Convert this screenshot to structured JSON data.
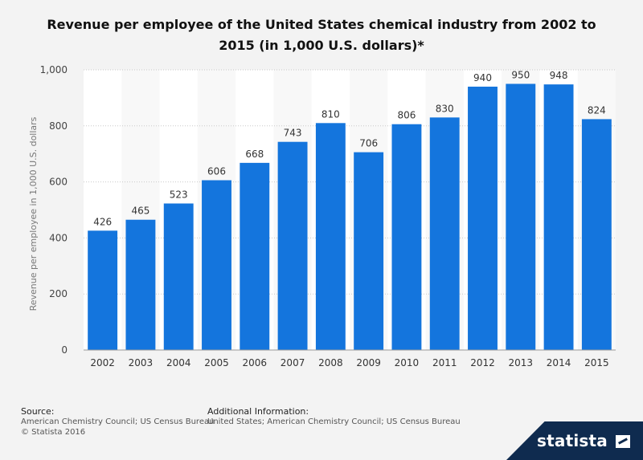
{
  "chart_data": {
    "type": "bar",
    "title": "Revenue per employee of the United States chemical industry from 2002 to 2015 (in 1,000 U.S. dollars)*",
    "xlabel": "",
    "ylabel": "Revenue per employee in 1,000 U.S. dollars",
    "ylim": [
      0,
      1000
    ],
    "yticks": [
      0,
      200,
      400,
      600,
      800,
      1000
    ],
    "ytick_labels": [
      "0",
      "200",
      "400",
      "600",
      "800",
      "1,000"
    ],
    "categories": [
      "2002",
      "2003",
      "2004",
      "2005",
      "2006",
      "2007",
      "2008",
      "2009",
      "2010",
      "2011",
      "2012",
      "2013",
      "2014",
      "2015"
    ],
    "values": [
      426,
      465,
      523,
      606,
      668,
      743,
      810,
      706,
      806,
      830,
      940,
      950,
      948,
      824
    ],
    "bar_color": "#1475dd"
  },
  "footer": {
    "source_heading": "Source:",
    "source_text": "American Chemistry Council; US Census Bureau",
    "copyright": "© Statista 2016",
    "additional_heading": "Additional Information:",
    "additional_text": "United States; American Chemistry Council; US Census Bureau"
  },
  "brand": {
    "name": "statista"
  }
}
